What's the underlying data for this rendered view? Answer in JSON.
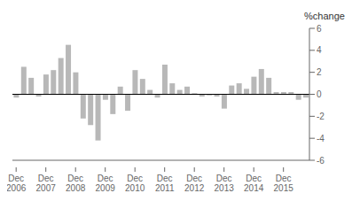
{
  "chart_data": {
    "type": "bar",
    "ylabel": "%change",
    "categories": [
      "Dec\n2006",
      null,
      null,
      null,
      "Dec\n2007",
      null,
      null,
      null,
      "Dec\n2008",
      null,
      null,
      null,
      "Dec\n2009",
      null,
      null,
      null,
      "Dec\n2010",
      null,
      null,
      null,
      "Dec\n2011",
      null,
      null,
      null,
      "Dec\n2012",
      null,
      null,
      null,
      "Dec\n2013",
      null,
      null,
      null,
      "Dec\n2014",
      null,
      null,
      null,
      "Dec\n2015",
      null,
      null,
      null
    ],
    "values": [
      -0.3,
      2.5,
      1.5,
      -0.2,
      1.8,
      2.2,
      3.3,
      4.5,
      2.0,
      -2.2,
      -2.8,
      -4.2,
      -0.5,
      -1.8,
      0.7,
      -1.5,
      2.2,
      1.4,
      0.4,
      -0.3,
      2.7,
      1.0,
      0.4,
      0.7,
      0.1,
      -0.2,
      -0.1,
      -0.2,
      -1.3,
      0.8,
      1.0,
      0.5,
      1.6,
      2.3,
      1.5,
      0.2,
      0.2,
      0.2,
      -0.5,
      -0.3
    ],
    "color": "#b8b8b8",
    "ylim": [
      -6,
      6
    ],
    "yticks": [
      -6,
      -4,
      -2,
      0,
      2,
      4,
      6
    ],
    "grid": false
  }
}
